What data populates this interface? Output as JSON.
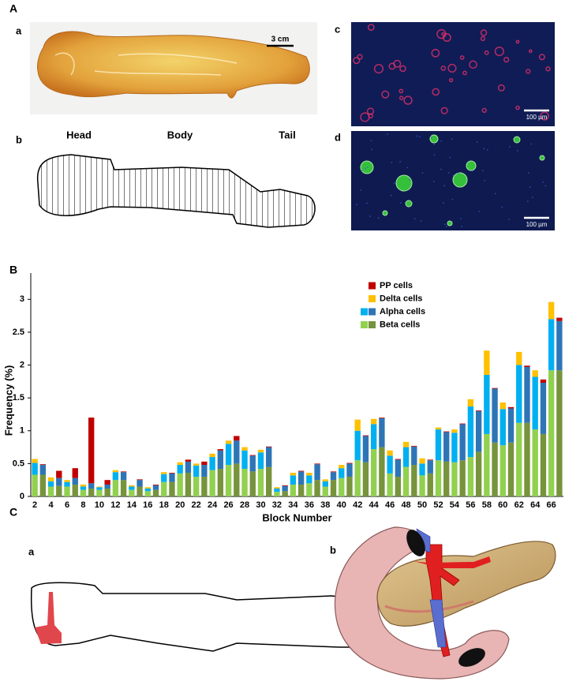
{
  "panels": {
    "A": {
      "label": "A",
      "a": {
        "label": "a",
        "scale_bar": "3 cm"
      },
      "b": {
        "label": "b",
        "regions": [
          "Head",
          "Body",
          "Tail"
        ]
      },
      "c": {
        "label": "c",
        "scale_bar": "100 µm"
      },
      "d": {
        "label": "d",
        "scale_bar": "100 µm"
      }
    },
    "B": {
      "label": "B"
    },
    "C": {
      "label": "C",
      "a": {
        "label": "a"
      },
      "b": {
        "label": "b"
      }
    }
  },
  "chart_data": {
    "type": "bar",
    "stacked": true,
    "x_label": "Block Number",
    "y_label": "Frequency (%)",
    "categories": [
      2,
      null,
      4,
      null,
      6,
      null,
      8,
      null,
      10,
      null,
      12,
      null,
      14,
      null,
      16,
      null,
      18,
      null,
      20,
      null,
      22,
      null,
      24,
      null,
      26,
      null,
      28,
      null,
      30,
      null,
      32,
      null,
      34,
      null,
      36,
      null,
      38,
      null,
      40,
      null,
      42,
      null,
      44,
      null,
      46,
      null,
      48,
      null,
      50,
      null,
      52,
      null,
      54,
      null,
      56,
      null,
      58,
      null,
      60,
      null,
      62,
      null,
      64,
      null,
      66,
      null
    ],
    "series": [
      {
        "name": "Beta cells",
        "colors": [
          "#92d050",
          "#77933c"
        ],
        "values": [
          0.33,
          0.33,
          0.15,
          0.16,
          0.15,
          0.18,
          0.1,
          0.12,
          0.1,
          0.12,
          0.25,
          0.25,
          0.1,
          0.15,
          0.08,
          0.1,
          0.22,
          0.22,
          0.35,
          0.36,
          0.3,
          0.3,
          0.4,
          0.42,
          0.48,
          0.5,
          0.42,
          0.38,
          0.42,
          0.45,
          0.07,
          0.08,
          0.18,
          0.18,
          0.2,
          0.25,
          0.15,
          0.25,
          0.28,
          0.3,
          0.55,
          0.52,
          0.72,
          0.75,
          0.35,
          0.3,
          0.45,
          0.48,
          0.32,
          0.35,
          0.55,
          0.53,
          0.52,
          0.55,
          0.6,
          0.68,
          0.95,
          0.82,
          0.78,
          0.82,
          1.12,
          1.12,
          1.02,
          0.95,
          1.92,
          1.92
        ]
      },
      {
        "name": "Alpha cells",
        "colors": [
          "#00b0f0",
          "#2e75b6"
        ],
        "values": [
          0.18,
          0.15,
          0.08,
          0.12,
          0.07,
          0.1,
          0.05,
          0.08,
          0.04,
          0.06,
          0.12,
          0.12,
          0.05,
          0.1,
          0.04,
          0.07,
          0.12,
          0.13,
          0.13,
          0.17,
          0.17,
          0.18,
          0.2,
          0.28,
          0.32,
          0.35,
          0.28,
          0.24,
          0.25,
          0.3,
          0.05,
          0.08,
          0.14,
          0.2,
          0.12,
          0.24,
          0.08,
          0.12,
          0.15,
          0.2,
          0.45,
          0.4,
          0.38,
          0.44,
          0.27,
          0.26,
          0.3,
          0.28,
          0.18,
          0.2,
          0.47,
          0.45,
          0.45,
          0.55,
          0.77,
          0.62,
          0.9,
          0.82,
          0.55,
          0.52,
          0.88,
          0.85,
          0.8,
          0.78,
          0.78,
          0.75
        ]
      },
      {
        "name": "Delta cells",
        "colors": [
          "#ffc000"
        ],
        "values": [
          0.06,
          null,
          0.06,
          null,
          0.03,
          null,
          0.03,
          null,
          0.01,
          null,
          0.03,
          null,
          0.02,
          null,
          0.02,
          null,
          0.03,
          null,
          0.04,
          null,
          0.03,
          null,
          0.05,
          null,
          0.05,
          null,
          0.05,
          null,
          0.04,
          null,
          0.02,
          null,
          0.04,
          null,
          0.04,
          null,
          0.03,
          null,
          0.05,
          null,
          0.17,
          null,
          0.08,
          null,
          0.08,
          null,
          0.08,
          null,
          0.08,
          null,
          0.03,
          null,
          0.05,
          null,
          0.11,
          null,
          0.37,
          null,
          0.1,
          null,
          0.2,
          null,
          0.1,
          null,
          0.26,
          null
        ]
      },
      {
        "name": "PP cells",
        "colors": [
          "#c00000"
        ],
        "values": [
          null,
          0.01,
          null,
          0.11,
          null,
          0.15,
          null,
          1.0,
          null,
          0.07,
          null,
          0.01,
          null,
          0.01,
          null,
          0.01,
          null,
          0.01,
          null,
          0.03,
          null,
          0.05,
          null,
          0.02,
          null,
          0.07,
          null,
          0.01,
          null,
          0.01,
          null,
          0.01,
          null,
          0.01,
          null,
          0.01,
          null,
          0.01,
          null,
          0.01,
          null,
          0.01,
          null,
          0.01,
          null,
          0.01,
          null,
          0.01,
          null,
          0.01,
          null,
          0.01,
          null,
          0.01,
          null,
          0.01,
          null,
          0.01,
          null,
          0.02,
          null,
          0.02,
          null,
          0.05,
          null,
          0.05
        ]
      }
    ],
    "ylim": [
      0,
      3.4
    ],
    "yticks": [
      0,
      0.5,
      1,
      1.5,
      2,
      2.5,
      3
    ],
    "legend": "upper-right",
    "grid": false
  }
}
